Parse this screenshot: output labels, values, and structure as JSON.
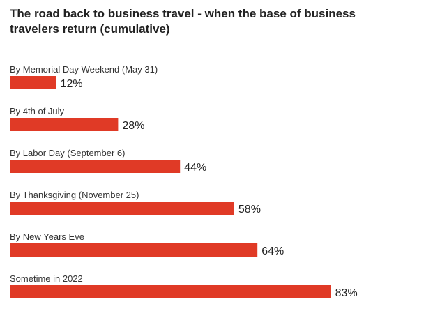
{
  "title": "The road back to business travel - when the base of business travelers return (cumulative)",
  "colors": {
    "bar": "#e03a26"
  },
  "chart_data": {
    "type": "bar",
    "orientation": "horizontal",
    "title": "The road back to business travel - when the base of business travelers return (cumulative)",
    "categories": [
      "By Memorial Day Weekend (May 31)",
      "By 4th of July",
      "By Labor Day (September 6)",
      "By Thanksgiving (November 25)",
      "By New Years Eve",
      "Sometime in 2022"
    ],
    "values": [
      12,
      28,
      44,
      58,
      64,
      83
    ],
    "value_labels": [
      "12%",
      "28%",
      "44%",
      "58%",
      "64%",
      "83%"
    ],
    "unit": "%",
    "xlim": [
      0,
      100
    ],
    "grid": false,
    "legend": "none"
  }
}
